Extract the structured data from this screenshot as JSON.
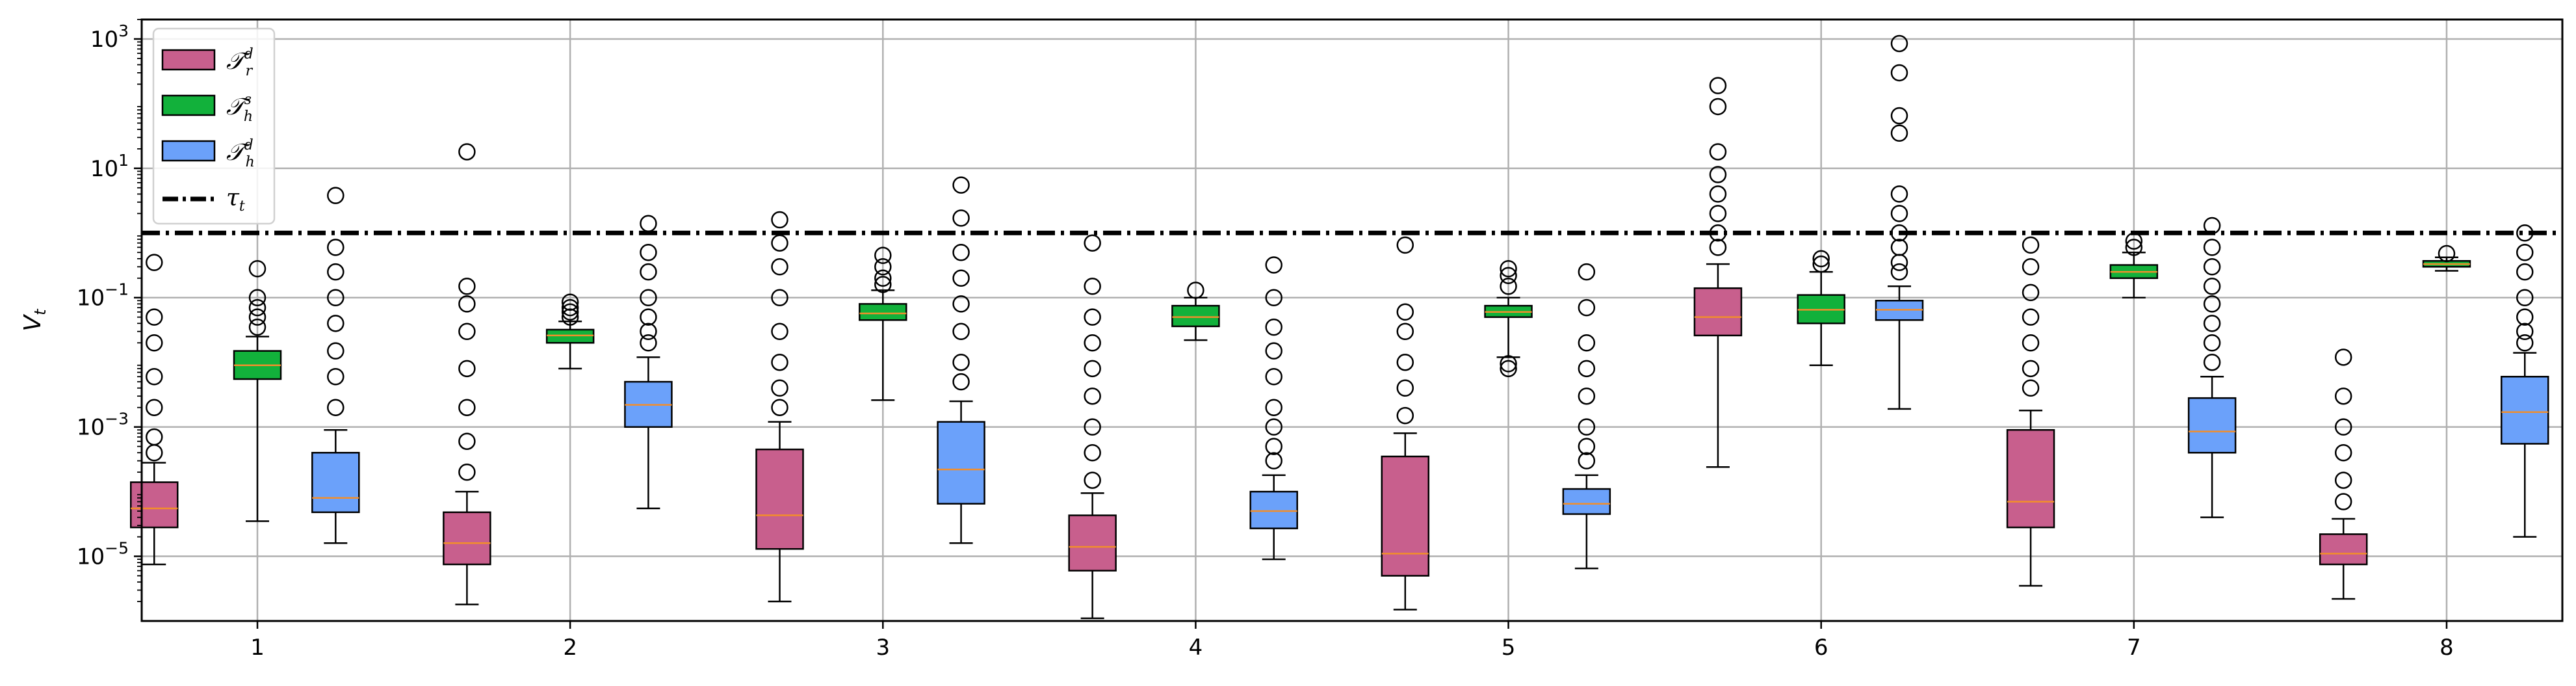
{
  "chart_data": {
    "type": "box",
    "title": "",
    "xlabel": "",
    "ylabel": "V_t",
    "ylabel_main": "V",
    "ylabel_sub": "t",
    "yscale": "log",
    "ylim": [
      1e-06,
      2000
    ],
    "xlim": [
      0.63,
      8.37
    ],
    "grid": true,
    "legend_position": "upper-left",
    "categories": [
      1,
      2,
      3,
      4,
      5,
      6,
      7,
      8
    ],
    "x_tick_labels": [
      "1",
      "2",
      "3",
      "4",
      "5",
      "6",
      "7",
      "8"
    ],
    "y_ticks": [
      {
        "value": 1e-05,
        "base": "10",
        "exp": "−5"
      },
      {
        "value": 0.001,
        "base": "10",
        "exp": "−3"
      },
      {
        "value": 0.1,
        "base": "10",
        "exp": "−1"
      },
      {
        "value": 10,
        "base": "10",
        "exp": "1"
      },
      {
        "value": 1000,
        "base": "10",
        "exp": "3"
      }
    ],
    "threshold": {
      "name": "τ_t",
      "label_main": "τ",
      "label_sub": "t",
      "value": 1.0,
      "style": "dash-dot"
    },
    "colors": {
      "tau_r_d": "#C85F8D",
      "tau_h_s": "#12B13B",
      "tau_h_d": "#6BA1FA",
      "median": "#F28E2B",
      "threshold": "#000000",
      "grid": "#B0B0B0"
    },
    "series": [
      {
        "key": "tau_r_d",
        "name": "𝒯ʳᵈ",
        "label_main": "𝒯",
        "label_sub": "r",
        "label_sup": "d",
        "offset": -0.33,
        "boxes": [
          {
            "x": 1,
            "whislo": 7.5e-06,
            "q1": 2.8e-05,
            "median": 5.5e-05,
            "q3": 0.00014,
            "whishi": 0.00028,
            "outliers": [
              0.35,
              0.05,
              0.02,
              0.006,
              0.002,
              0.0007,
              0.0004
            ]
          },
          {
            "x": 2,
            "whislo": 1.8e-06,
            "q1": 7.5e-06,
            "median": 1.6e-05,
            "q3": 4.8e-05,
            "whishi": 0.0001,
            "outliers": [
              18,
              0.15,
              0.08,
              0.03,
              0.008,
              0.002,
              0.0006,
              0.0002
            ]
          },
          {
            "x": 3,
            "whislo": 2e-06,
            "q1": 1.3e-05,
            "median": 4.3e-05,
            "q3": 0.00045,
            "whishi": 0.0012,
            "outliers": [
              1.6,
              0.7,
              0.3,
              0.1,
              0.03,
              0.01,
              0.004,
              0.002
            ]
          },
          {
            "x": 4,
            "whislo": 1.1e-06,
            "q1": 6e-06,
            "median": 1.4e-05,
            "q3": 4.3e-05,
            "whishi": 9.5e-05,
            "outliers": [
              0.7,
              0.15,
              0.05,
              0.02,
              0.008,
              0.003,
              0.001,
              0.0004,
              0.00015
            ]
          },
          {
            "x": 5,
            "whislo": 1.5e-06,
            "q1": 5e-06,
            "median": 1.1e-05,
            "q3": 0.00035,
            "whishi": 0.0008,
            "outliers": [
              0.65,
              0.06,
              0.03,
              0.01,
              0.004,
              0.0015
            ]
          },
          {
            "x": 6,
            "whislo": 0.00024,
            "q1": 0.026,
            "median": 0.05,
            "q3": 0.14,
            "whishi": 0.33,
            "outliers": [
              190,
              90,
              18,
              8,
              4,
              2,
              1,
              0.6
            ]
          },
          {
            "x": 7,
            "whislo": 3.5e-06,
            "q1": 2.8e-05,
            "median": 7e-05,
            "q3": 0.0009,
            "whishi": 0.0018,
            "outliers": [
              0.65,
              0.3,
              0.12,
              0.05,
              0.02,
              0.008,
              0.004
            ]
          },
          {
            "x": 8,
            "whislo": 2.2e-06,
            "q1": 7.5e-06,
            "median": 1.1e-05,
            "q3": 2.2e-05,
            "whishi": 3.8e-05,
            "outliers": [
              0.012,
              0.003,
              0.001,
              0.0004,
              0.00015,
              7e-05
            ]
          }
        ]
      },
      {
        "key": "tau_h_s",
        "name": "𝒯ₕˢ",
        "label_main": "𝒯",
        "label_sub": "h",
        "label_sup": "s",
        "offset": 0.0,
        "boxes": [
          {
            "x": 1,
            "whislo": 3.5e-05,
            "q1": 0.0055,
            "median": 0.009,
            "q3": 0.015,
            "whishi": 0.025,
            "outliers": [
              0.28,
              0.1,
              0.07,
              0.05,
              0.035
            ]
          },
          {
            "x": 2,
            "whislo": 0.008,
            "q1": 0.02,
            "median": 0.026,
            "q3": 0.032,
            "whishi": 0.043,
            "outliers": [
              0.085,
              0.07,
              0.06,
              0.05
            ]
          },
          {
            "x": 3,
            "whislo": 0.0026,
            "q1": 0.045,
            "median": 0.057,
            "q3": 0.08,
            "whishi": 0.13,
            "outliers": [
              0.45,
              0.3,
              0.2,
              0.16
            ]
          },
          {
            "x": 4,
            "whislo": 0.022,
            "q1": 0.036,
            "median": 0.05,
            "q3": 0.075,
            "whishi": 0.1,
            "outliers": [
              0.13
            ]
          },
          {
            "x": 5,
            "whislo": 0.012,
            "q1": 0.05,
            "median": 0.06,
            "q3": 0.075,
            "whishi": 0.1,
            "outliers": [
              0.28,
              0.22,
              0.15,
              0.0095,
              0.008
            ]
          },
          {
            "x": 6,
            "whislo": 0.009,
            "q1": 0.04,
            "median": 0.065,
            "q3": 0.11,
            "whishi": 0.25,
            "outliers": [
              0.4,
              0.33
            ]
          },
          {
            "x": 7,
            "whislo": 0.1,
            "q1": 0.2,
            "median": 0.25,
            "q3": 0.32,
            "whishi": 0.5,
            "outliers": [
              0.75,
              0.6
            ]
          },
          {
            "x": 8,
            "whislo": 0.26,
            "q1": 0.3,
            "median": 0.33,
            "q3": 0.37,
            "whishi": 0.42,
            "outliers": [
              0.48
            ]
          }
        ]
      },
      {
        "key": "tau_h_d",
        "name": "𝒯ₕᵈ",
        "label_main": "𝒯",
        "label_sub": "h",
        "label_sup": "d",
        "offset": 0.25,
        "boxes": [
          {
            "x": 1,
            "whislo": 1.6e-05,
            "q1": 4.8e-05,
            "median": 8e-05,
            "q3": 0.0004,
            "whishi": 0.0009,
            "outliers": [
              3.8,
              0.6,
              0.25,
              0.1,
              0.04,
              0.015,
              0.006,
              0.002
            ]
          },
          {
            "x": 2,
            "whislo": 5.5e-05,
            "q1": 0.001,
            "median": 0.0022,
            "q3": 0.005,
            "whishi": 0.012,
            "outliers": [
              1.4,
              0.5,
              0.25,
              0.1,
              0.05,
              0.03,
              0.02
            ]
          },
          {
            "x": 3,
            "whislo": 1.6e-05,
            "q1": 6.5e-05,
            "median": 0.00022,
            "q3": 0.0012,
            "whishi": 0.0025,
            "outliers": [
              5.5,
              1.7,
              0.5,
              0.2,
              0.08,
              0.03,
              0.01,
              0.005
            ]
          },
          {
            "x": 4,
            "whislo": 9e-06,
            "q1": 2.7e-05,
            "median": 5e-05,
            "q3": 0.0001,
            "whishi": 0.00018,
            "outliers": [
              0.32,
              0.1,
              0.035,
              0.015,
              0.006,
              0.002,
              0.001,
              0.0005,
              0.0003
            ]
          },
          {
            "x": 5,
            "whislo": 6.5e-06,
            "q1": 4.5e-05,
            "median": 6.5e-05,
            "q3": 0.00011,
            "whishi": 0.00018,
            "outliers": [
              0.25,
              0.07,
              0.02,
              0.008,
              0.003,
              0.001,
              0.0005,
              0.0003
            ]
          },
          {
            "x": 6,
            "whislo": 0.0019,
            "q1": 0.045,
            "median": 0.065,
            "q3": 0.09,
            "whishi": 0.15,
            "outliers": [
              850,
              300,
              65,
              35,
              4,
              2,
              1,
              0.6,
              0.35,
              0.25
            ]
          },
          {
            "x": 7,
            "whislo": 4e-05,
            "q1": 0.0004,
            "median": 0.00085,
            "q3": 0.0028,
            "whishi": 0.006,
            "outliers": [
              1.3,
              0.6,
              0.3,
              0.15,
              0.08,
              0.04,
              0.02,
              0.01
            ]
          },
          {
            "x": 8,
            "whislo": 2e-05,
            "q1": 0.00055,
            "median": 0.0017,
            "q3": 0.006,
            "whishi": 0.014,
            "outliers": [
              1.0,
              0.5,
              0.25,
              0.1,
              0.05,
              0.03,
              0.02
            ]
          }
        ]
      }
    ]
  }
}
